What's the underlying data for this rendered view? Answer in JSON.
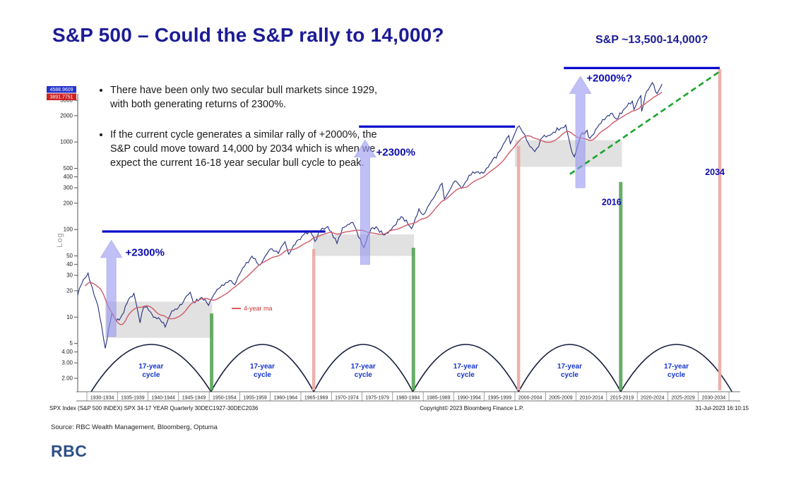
{
  "slide": {
    "title": "S&P 500 – Could the S&P rally to 14,000?",
    "target_callout": "S&P ~13,500-14,000?",
    "bullets": [
      "There have been only two secular bull markets since 1929, with both generating returns of 2300%.",
      "If the current cycle generates a similar rally of +2000%, the S&P could move toward 14,000 by 2034 which is when we expect the current 16-18 year secular bull cycle to peak."
    ],
    "source": "Source: RBC Wealth Management, Bloomberg, Optuma",
    "logo": "RBC"
  },
  "chart_data": {
    "type": "line",
    "title": "",
    "xlabel": "",
    "ylabel": "Log",
    "y_scale": "log",
    "x_range": [
      1928,
      2036
    ],
    "ylim": [
      2,
      3500
    ],
    "y_ticks": [
      "3000",
      "2000",
      "1000",
      "500",
      "400",
      "300",
      "200",
      "100",
      "50",
      "40",
      "30",
      "20",
      "10",
      "5",
      "4.00",
      "3.00",
      "2.00"
    ],
    "y_tick_values": [
      3000,
      2000,
      1000,
      500,
      400,
      300,
      200,
      100,
      50,
      40,
      30,
      20,
      10,
      5,
      4,
      3,
      2
    ],
    "x_tick_labels": [
      "1930-1934",
      "1935-1939",
      "1940-1944",
      "1945-1949",
      "1950-1954",
      "1955-1959",
      "1960-1964",
      "1965-1969",
      "1970-1974",
      "1975-1979",
      "1980-1984",
      "1985-1989",
      "1990-1994",
      "1995-1999",
      "2000-2004",
      "2005-2009",
      "2010-2014",
      "2015-2019",
      "2020-2024",
      "2025-2029",
      "2030-2034"
    ],
    "series": [
      {
        "name": "SPX Index (S&P 500 INDEX)",
        "color": "#232e7d",
        "points": [
          [
            1928.0,
            17.6
          ],
          [
            1928.7,
            24.4
          ],
          [
            1929.7,
            31.9
          ],
          [
            1930.4,
            21.5
          ],
          [
            1931.3,
            13.5
          ],
          [
            1932.5,
            4.4
          ],
          [
            1933.6,
            11.2
          ],
          [
            1934.3,
            9.1
          ],
          [
            1935.0,
            9.8
          ],
          [
            1936.3,
            15.9
          ],
          [
            1937.2,
            18.7
          ],
          [
            1938.2,
            8.6
          ],
          [
            1938.8,
            13.1
          ],
          [
            1939.6,
            12.0
          ],
          [
            1940.4,
            9.9
          ],
          [
            1941.5,
            9.3
          ],
          [
            1942.3,
            7.7
          ],
          [
            1943.4,
            11.8
          ],
          [
            1944.5,
            12.9
          ],
          [
            1945.8,
            17.5
          ],
          [
            1946.4,
            19.2
          ],
          [
            1946.9,
            14.8
          ],
          [
            1948.3,
            16.8
          ],
          [
            1949.4,
            13.6
          ],
          [
            1950.5,
            19.0
          ],
          [
            1951.6,
            23.3
          ],
          [
            1952.8,
            26.1
          ],
          [
            1953.7,
            23.5
          ],
          [
            1955.0,
            36.6
          ],
          [
            1956.5,
            49.6
          ],
          [
            1957.8,
            39.2
          ],
          [
            1959.5,
            60.0
          ],
          [
            1960.8,
            53.3
          ],
          [
            1961.9,
            72.6
          ],
          [
            1962.5,
            52.3
          ],
          [
            1963.8,
            74.0
          ],
          [
            1965.0,
            87.6
          ],
          [
            1966.1,
            94.1
          ],
          [
            1966.8,
            73.2
          ],
          [
            1967.7,
            97.6
          ],
          [
            1968.9,
            108.4
          ],
          [
            1970.4,
            69.3
          ],
          [
            1971.3,
            104.8
          ],
          [
            1973.0,
            120.2
          ],
          [
            1974.8,
            62.3
          ],
          [
            1976.0,
            102.9
          ],
          [
            1976.8,
            107.8
          ],
          [
            1978.2,
            86.9
          ],
          [
            1979.8,
            111.3
          ],
          [
            1980.9,
            140.5
          ],
          [
            1982.6,
            102.4
          ],
          [
            1983.8,
            172.7
          ],
          [
            1984.5,
            147.8
          ],
          [
            1985.8,
            211.3
          ],
          [
            1987.6,
            336.8
          ],
          [
            1987.95,
            223.9
          ],
          [
            1989.7,
            359.8
          ],
          [
            1990.8,
            295.5
          ],
          [
            1992.0,
            417.1
          ],
          [
            1993.5,
            456.5
          ],
          [
            1994.3,
            438.9
          ],
          [
            1995.9,
            636.0
          ],
          [
            1997.0,
            786.2
          ],
          [
            1998.5,
            1186.8
          ],
          [
            1998.75,
            957.3
          ],
          [
            1999.9,
            1469.3
          ],
          [
            2000.2,
            1527.5
          ],
          [
            2001.7,
            965.8
          ],
          [
            2002.75,
            776.8
          ],
          [
            2004.0,
            1131.1
          ],
          [
            2005.5,
            1228.8
          ],
          [
            2007.0,
            1438.2
          ],
          [
            2007.8,
            1565.2
          ],
          [
            2008.85,
            752.4
          ],
          [
            2009.2,
            676.5
          ],
          [
            2010.3,
            1217.3
          ],
          [
            2011.3,
            1363.6
          ],
          [
            2011.75,
            1099.2
          ],
          [
            2013.0,
            1480.4
          ],
          [
            2014.7,
            2011.4
          ],
          [
            2015.4,
            2130.8
          ],
          [
            2016.1,
            1829.1
          ],
          [
            2017.5,
            2425.2
          ],
          [
            2018.7,
            2930.8
          ],
          [
            2018.97,
            2351.1
          ],
          [
            2019.9,
            3230.8
          ],
          [
            2020.1,
            3386.2
          ],
          [
            2020.22,
            2237.4
          ],
          [
            2021.0,
            3756.1
          ],
          [
            2021.95,
            4766.2
          ],
          [
            2022.75,
            3577.0
          ],
          [
            2023.1,
            3970.0
          ],
          [
            2023.55,
            4588.9
          ]
        ]
      },
      {
        "name": "4-year ma",
        "color": "#cf5a68",
        "derived": "moving-average"
      }
    ],
    "ma_label": "4-year ma",
    "price_tags": [
      {
        "value": "4588.9609",
        "bg": "#2433cc"
      },
      {
        "value": "3891.7751",
        "bg": "#cc2222"
      }
    ],
    "resistance_lines": [
      {
        "from": 1932,
        "to": 1968.5,
        "level": 95
      },
      {
        "from": 1974,
        "to": 1999.5,
        "level": 1500
      },
      {
        "from": 2007.5,
        "to": 2033,
        "level": 7000
      }
    ],
    "projection_line": {
      "from_year": 2008.5,
      "from_value": 430,
      "to_year": 2033,
      "to_value": 6400
    },
    "consolidation_boxes": [
      {
        "from": 1932.5,
        "to": 1950,
        "low": 5.8,
        "high": 15
      },
      {
        "from": 1966.5,
        "to": 1983,
        "low": 50,
        "high": 88
      },
      {
        "from": 1999.5,
        "to": 2017,
        "low": 520,
        "high": 1050
      }
    ],
    "cycle_low_lines": [
      {
        "year": 1949.9,
        "top": 11
      },
      {
        "year": 1982.9,
        "top": 62
      },
      {
        "year": 2016.8,
        "top": 350
      }
    ],
    "cycle_top_lines": [
      {
        "year": 1966.6,
        "top": 60
      },
      {
        "year": 2000.1,
        "top": 900
      },
      {
        "year": 2033.0,
        "top": 6800
      }
    ],
    "gain_arrows": [
      {
        "year": 1933.5,
        "from": 6,
        "to": 75
      },
      {
        "year": 1975.0,
        "from": 40,
        "to": 1050
      },
      {
        "year": 2010.2,
        "from": 300,
        "to": 5600
      }
    ],
    "gain_labels": [
      {
        "text": "+2300%",
        "year": 1935.8,
        "value": 50
      },
      {
        "text": "+2300%",
        "year": 1976.8,
        "value": 700
      },
      {
        "text": "+2000%?",
        "year": 2011.2,
        "value": 4900
      }
    ],
    "year_labels": [
      {
        "text": "2016",
        "year": 2015.3,
        "value": 190
      },
      {
        "text": "2034",
        "year": 2032.2,
        "value": 420
      }
    ],
    "cycles": {
      "label_line1": "17-year",
      "label_line2": "cycle",
      "boundaries": [
        1930.2,
        1949.8,
        1966.6,
        1982.8,
        2000.1,
        2016.8,
        2035
      ]
    },
    "footer": {
      "left": "SPX Index (S&P 500 INDEX) SPX 34-17 YEAR Quarterly 30DEC1927-30DEC2036",
      "center": "Copyright© 2023 Bloomberg Finance L.P.",
      "right": "31-Jul-2023 16:10:15"
    }
  }
}
